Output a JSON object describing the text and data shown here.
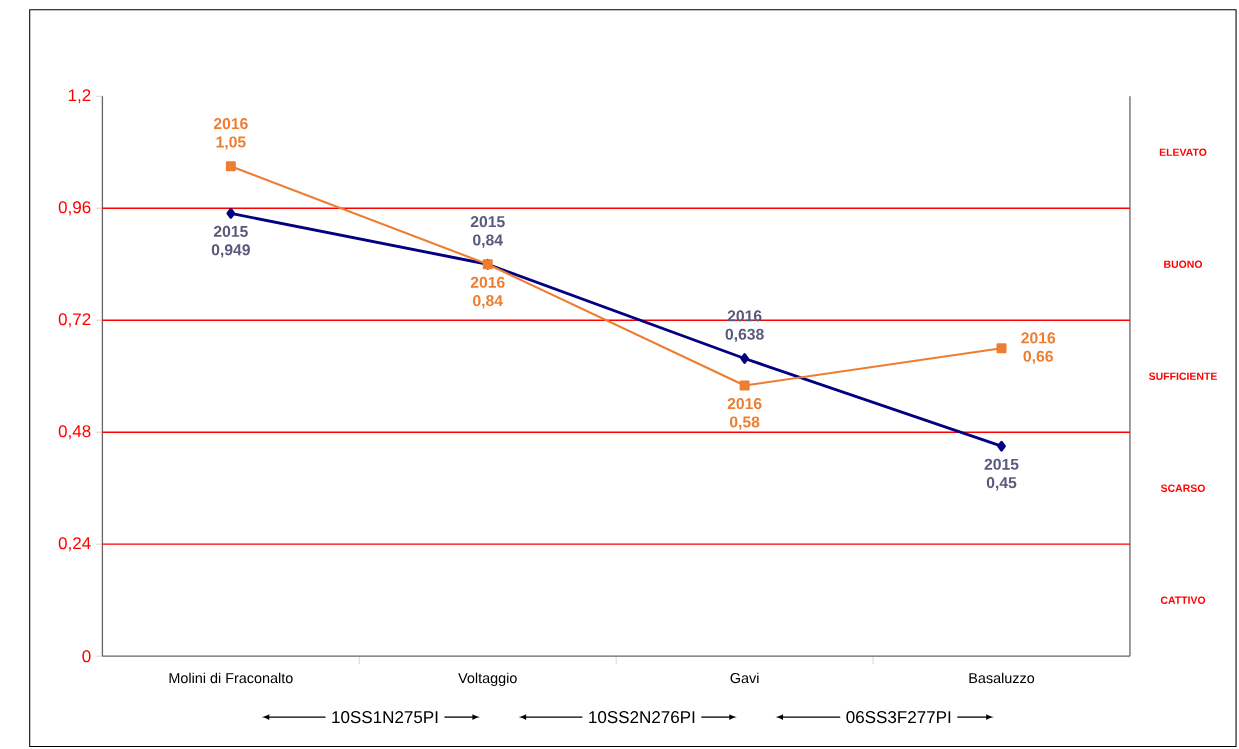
{
  "chart_data": {
    "type": "line",
    "categories": [
      "Molini di Fraconalto",
      "Voltaggio",
      "Gavi",
      "Basaluzzo"
    ],
    "series": [
      {
        "color": "#000080",
        "marker": "diamond",
        "values": [
          0.949,
          0.84,
          0.638,
          0.45
        ],
        "value_labels": [
          "2015 0,949",
          "2015 0,84",
          "2016 0,638",
          "2015 0,45"
        ]
      },
      {
        "color": "#ed7d31",
        "marker": "square",
        "values": [
          1.05,
          0.84,
          0.58,
          0.66
        ],
        "value_labels": [
          "2016 1,05",
          "2016 0,84",
          "2016 0,58",
          "2016 0,66"
        ]
      }
    ],
    "ylim": [
      0,
      1.2
    ],
    "yticks": [
      {
        "value": 0,
        "label": "0"
      },
      {
        "value": 0.24,
        "label": "0,24"
      },
      {
        "value": 0.48,
        "label": "0,48"
      },
      {
        "value": 0.72,
        "label": "0,72"
      },
      {
        "value": 0.96,
        "label": "0,96"
      },
      {
        "value": 1.2,
        "label": "1,2"
      }
    ],
    "ref_lines": [
      {
        "axis": "y",
        "value": 0.24,
        "color": "#ff0000"
      },
      {
        "axis": "y",
        "value": 0.48,
        "color": "#ff0000"
      },
      {
        "axis": "y",
        "value": 0.72,
        "color": "#ff0000"
      },
      {
        "axis": "y",
        "value": 0.96,
        "color": "#ff0000"
      }
    ],
    "annotations": [
      "10SS1N275PI",
      "10SS2N276PI",
      "06SS3F277PI",
      "ELEVATO",
      "BUONO",
      "SUFFICIENTE",
      "SCARSO",
      "CATTIVO"
    ]
  }
}
